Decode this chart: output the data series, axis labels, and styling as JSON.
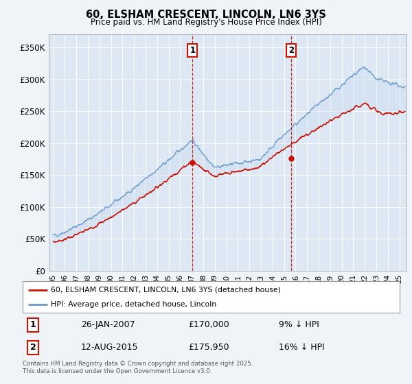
{
  "title": "60, ELSHAM CRESCENT, LINCOLN, LN6 3YS",
  "subtitle": "Price paid vs. HM Land Registry's House Price Index (HPI)",
  "ylim": [
    0,
    370000
  ],
  "yticks": [
    0,
    50000,
    100000,
    150000,
    200000,
    250000,
    300000,
    350000
  ],
  "ytick_labels": [
    "£0",
    "£50K",
    "£100K",
    "£150K",
    "£200K",
    "£250K",
    "£300K",
    "£350K"
  ],
  "xlim_start": 1994.6,
  "xlim_end": 2025.6,
  "bg_color": "#f0f4f8",
  "plot_bg": "#dde8f4",
  "grid_color": "#ffffff",
  "hpi_color": "#6699cc",
  "price_color": "#cc1100",
  "fill_color": "#c8d8ee",
  "sale1_x": 2007.07,
  "sale1_y": 170000,
  "sale2_x": 2015.62,
  "sale2_y": 175950,
  "legend_line1": "60, ELSHAM CRESCENT, LINCOLN, LN6 3YS (detached house)",
  "legend_line2": "HPI: Average price, detached house, Lincoln",
  "table_row1": [
    "1",
    "26-JAN-2007",
    "£170,000",
    "9% ↓ HPI"
  ],
  "table_row2": [
    "2",
    "12-AUG-2015",
    "£175,950",
    "16% ↓ HPI"
  ],
  "footer": "Contains HM Land Registry data © Crown copyright and database right 2025.\nThis data is licensed under the Open Government Licence v3.0."
}
